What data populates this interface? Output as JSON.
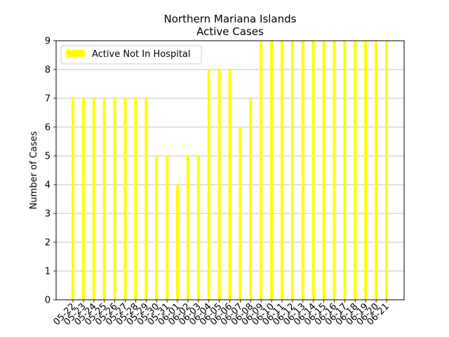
{
  "chart_data": {
    "type": "bar",
    "title": "Northern Mariana Islands",
    "subtitle": "Active Cases",
    "xlabel": "",
    "ylabel": "Number of Cases",
    "ylim": [
      0,
      9
    ],
    "yticks": [
      0,
      1,
      2,
      3,
      4,
      5,
      6,
      7,
      8,
      9
    ],
    "grid": "horizontal",
    "legend_position": "top-left",
    "categories": [
      "05-22",
      "05-23",
      "05-24",
      "05-25",
      "05-26",
      "05-27",
      "05-28",
      "05-29",
      "05-30",
      "05-31",
      "06-01",
      "06-02",
      "06-03",
      "06-04",
      "06-05",
      "06-06",
      "06-07",
      "06-08",
      "06-09",
      "06-10",
      "06-11",
      "06-12",
      "06-13",
      "06-14",
      "06-15",
      "06-16",
      "06-17",
      "06-18",
      "06-19",
      "06-20",
      "06-21"
    ],
    "series": [
      {
        "name": "Active Not In Hospital",
        "color": "#ffff00",
        "values": [
          7,
          7,
          7,
          7,
          7,
          7,
          7,
          7,
          5,
          5,
          4,
          5,
          5,
          8,
          8,
          8,
          6,
          7,
          9,
          9,
          9,
          9,
          9,
          9,
          9,
          9,
          9,
          9,
          9,
          9,
          9
        ]
      }
    ]
  }
}
